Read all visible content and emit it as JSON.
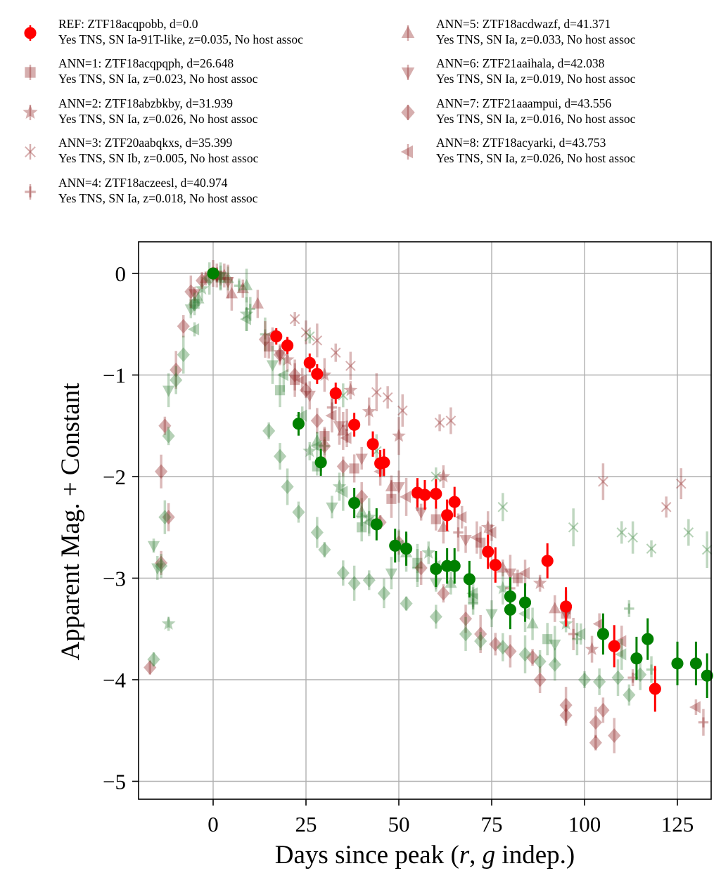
{
  "chart_data": {
    "type": "scatter",
    "xlabel": "Days since peak (r, g indep.)",
    "ylabel": "Apparent Mag. + Constant",
    "xlim": [
      -20,
      134
    ],
    "ylim": [
      -5.2,
      0.3
    ],
    "x_ticks": [
      0,
      25,
      50,
      75,
      100,
      125
    ],
    "y_ticks": [
      0,
      -1,
      -2,
      -3,
      -4,
      -5
    ],
    "grid": true,
    "legend_position": "above plot, two columns",
    "colors": {
      "r_band": "#8b1a1a",
      "g_band": "#2e7d32",
      "ref_r": "#ff0000",
      "ref_g": "#008000"
    },
    "series": [
      {
        "name": "REF: ZTF18acqpobb, d=0.0",
        "note": "Yes TNS, SN Ia-91T-like, z=0.035, No host assoc",
        "marker": "circle",
        "alpha": 1.0,
        "r_points": [
          [
            0,
            0
          ],
          [
            17,
            -0.62
          ],
          [
            20,
            -0.71
          ],
          [
            26,
            -0.88
          ],
          [
            28,
            -0.99
          ],
          [
            33,
            -1.18
          ],
          [
            38,
            -1.49
          ],
          [
            43,
            -1.68
          ],
          [
            45,
            -1.87
          ],
          [
            46,
            -1.86
          ],
          [
            55,
            -2.16
          ],
          [
            57,
            -2.18
          ],
          [
            60,
            -2.17
          ],
          [
            63,
            -2.38
          ],
          [
            65,
            -2.25
          ],
          [
            74,
            -2.74
          ],
          [
            76,
            -2.87
          ],
          [
            90,
            -2.83
          ],
          [
            95,
            -3.28
          ],
          [
            108,
            -3.67
          ],
          [
            119,
            -4.09
          ]
        ],
        "g_points": [
          [
            0,
            0
          ],
          [
            23,
            -1.48
          ],
          [
            29,
            -1.86
          ],
          [
            38,
            -2.26
          ],
          [
            44,
            -2.47
          ],
          [
            49,
            -2.68
          ],
          [
            52,
            -2.71
          ],
          [
            60,
            -2.91
          ],
          [
            63,
            -2.88
          ],
          [
            65,
            -2.88
          ],
          [
            69,
            -3.01
          ],
          [
            80,
            -3.18
          ],
          [
            80,
            -3.31
          ],
          [
            84,
            -3.24
          ],
          [
            105,
            -3.55
          ],
          [
            114,
            -3.79
          ],
          [
            117,
            -3.6
          ],
          [
            125,
            -3.84
          ],
          [
            130,
            -3.84
          ],
          [
            133,
            -3.96
          ]
        ]
      },
      {
        "name": "ANN=1: ZTF18acqpqph, d=26.648",
        "note": "Yes TNS, SN Ia, z=0.023, No host assoc",
        "marker": "square",
        "alpha": 0.35,
        "r_points": [
          [
            1,
            -0.02
          ],
          [
            15,
            -0.72
          ],
          [
            22,
            -1.05
          ],
          [
            30,
            -1.6
          ],
          [
            38,
            -1.92
          ],
          [
            48,
            -2.22
          ],
          [
            60,
            -2.42
          ],
          [
            72,
            -2.65
          ],
          [
            82,
            -3.0
          ],
          [
            95,
            -3.35
          ]
        ],
        "g_points": [
          [
            -5,
            -0.3
          ],
          [
            2,
            -0.04
          ],
          [
            18,
            -1.15
          ],
          [
            28,
            -1.9
          ],
          [
            40,
            -2.5
          ],
          [
            55,
            -2.85
          ],
          [
            70,
            -3.2
          ],
          [
            90,
            -3.6
          ]
        ]
      },
      {
        "name": "ANN=2: ZTF18abzbkby, d=31.939",
        "note": "Yes TNS, SN Ia, z=0.026, No host assoc",
        "marker": "star",
        "alpha": 0.35,
        "r_points": [
          [
            1,
            -0.01
          ],
          [
            20,
            -0.85
          ],
          [
            30,
            -1.0
          ],
          [
            37,
            -1.15
          ],
          [
            42,
            -1.36
          ],
          [
            50,
            -1.6
          ],
          [
            62,
            -2.0
          ],
          [
            74,
            -2.5
          ],
          [
            88,
            -3.05
          ],
          [
            102,
            -3.7
          ]
        ],
        "g_points": [
          [
            -12,
            -3.45
          ],
          [
            -3,
            -0.15
          ],
          [
            9,
            -0.4
          ],
          [
            26,
            -1.75
          ],
          [
            34,
            -2.1
          ],
          [
            42,
            -2.4
          ],
          [
            58,
            -2.75
          ],
          [
            78,
            -3.1
          ],
          [
            95,
            -3.45
          ]
        ]
      },
      {
        "name": "ANN=3: ZTF20aabqkxs, d=35.399",
        "note": "Yes TNS, SN Ib, z=0.005, No host assoc",
        "marker": "x",
        "alpha": 0.35,
        "r_points": [
          [
            22,
            -0.45
          ],
          [
            25,
            -0.58
          ],
          [
            28,
            -0.66
          ],
          [
            33,
            -0.78
          ],
          [
            37,
            -0.91
          ],
          [
            44,
            -1.17
          ],
          [
            47,
            -1.22
          ],
          [
            51,
            -1.35
          ],
          [
            61,
            -1.47
          ],
          [
            64,
            -1.45
          ],
          [
            105,
            -2.05
          ],
          [
            122,
            -2.3
          ],
          [
            126,
            -2.07
          ]
        ],
        "g_points": [
          [
            26,
            -0.62
          ],
          [
            35,
            -1.2
          ],
          [
            44,
            -1.75
          ],
          [
            60,
            -2.0
          ],
          [
            78,
            -2.3
          ],
          [
            97,
            -2.5
          ],
          [
            110,
            -2.55
          ],
          [
            113,
            -2.6
          ],
          [
            118,
            -2.71
          ],
          [
            128,
            -2.55
          ],
          [
            133,
            -2.72
          ]
        ]
      },
      {
        "name": "ANN=4: ZTF18aczeesl, d=40.974",
        "note": "Yes TNS, SN Ia, z=0.018, No host assoc",
        "marker": "plus",
        "alpha": 0.35,
        "r_points": [
          [
            2,
            -0.05
          ],
          [
            32,
            -1.32
          ],
          [
            36,
            -1.5
          ],
          [
            45,
            -1.88
          ],
          [
            55,
            -2.2
          ],
          [
            66,
            -2.55
          ],
          [
            80,
            -3.1
          ],
          [
            97,
            -3.55
          ],
          [
            113,
            -3.98
          ],
          [
            132,
            -4.42
          ]
        ],
        "g_points": [
          [
            7,
            -0.12
          ],
          [
            10,
            -0.35
          ],
          [
            14,
            -0.6
          ],
          [
            30,
            -1.7
          ],
          [
            40,
            -2.4
          ],
          [
            55,
            -2.9
          ],
          [
            70,
            -3.25
          ],
          [
            98,
            -3.6
          ],
          [
            112,
            -3.3
          ],
          [
            118,
            -3.9
          ]
        ]
      },
      {
        "name": "ANN=5: ZTF18acdwazf, d=41.371",
        "note": "Yes TNS, SN Ia, z=0.033, No host assoc",
        "marker": "triangle-up",
        "alpha": 0.35,
        "r_points": [
          [
            -2,
            -0.05
          ],
          [
            3,
            -0.02
          ],
          [
            5,
            -0.2
          ],
          [
            8,
            -0.15
          ],
          [
            12,
            -0.3
          ],
          [
            35,
            -1.55
          ],
          [
            48,
            -2.1
          ],
          [
            62,
            -2.5
          ],
          [
            78,
            -2.9
          ],
          [
            92,
            -3.3
          ]
        ],
        "g_points": [
          [
            -4,
            -0.25
          ],
          [
            4,
            -0.05
          ],
          [
            9,
            -0.12
          ],
          [
            28,
            -1.65
          ],
          [
            40,
            -2.35
          ],
          [
            52,
            -2.75
          ],
          [
            64,
            -3.05
          ],
          [
            86,
            -3.45
          ]
        ]
      },
      {
        "name": "ANN=6: ZTF21aaihala, d=42.038",
        "note": "Yes TNS, SN Ia, z=0.019, No host assoc",
        "marker": "triangle-down",
        "alpha": 0.35,
        "r_points": [
          [
            -5,
            -0.2
          ],
          [
            1,
            -0.02
          ],
          [
            4,
            -0.08
          ],
          [
            18,
            -0.8
          ],
          [
            26,
            -1.2
          ],
          [
            34,
            -1.5
          ],
          [
            40,
            -1.82
          ],
          [
            50,
            -2.1
          ],
          [
            56,
            -2.35
          ],
          [
            68,
            -2.62
          ],
          [
            80,
            -2.95
          ],
          [
            95,
            -3.35
          ]
        ],
        "g_points": [
          [
            -16,
            -2.68
          ],
          [
            -15,
            -2.9
          ],
          [
            -12,
            -1.15
          ],
          [
            -6,
            -0.35
          ],
          [
            2,
            -0.03
          ],
          [
            16,
            -0.9
          ],
          [
            32,
            -2.3
          ],
          [
            48,
            -2.95
          ],
          [
            60,
            -3.05
          ],
          [
            75,
            -3.35
          ],
          [
            92,
            -3.65
          ]
        ]
      },
      {
        "name": "ANN=7: ZTF21aaampui, d=43.556",
        "note": "Yes TNS, SN Ia, z=0.016, No host assoc",
        "marker": "diamond",
        "alpha": 0.35,
        "r_points": [
          [
            -17,
            -3.88
          ],
          [
            -14,
            -2.85
          ],
          [
            -14,
            -1.95
          ],
          [
            -13,
            -1.5
          ],
          [
            -12,
            -2.4
          ],
          [
            -10,
            -0.95
          ],
          [
            -8,
            -0.52
          ],
          [
            -6,
            -0.18
          ],
          [
            -3,
            -0.07
          ],
          [
            0,
            0
          ],
          [
            14,
            -0.65
          ],
          [
            18,
            -0.8
          ],
          [
            22,
            -1.0
          ],
          [
            25,
            -1.15
          ],
          [
            28,
            -1.45
          ],
          [
            30,
            -1.7
          ],
          [
            35,
            -1.9
          ],
          [
            40,
            -2.2
          ],
          [
            45,
            -2.45
          ],
          [
            50,
            -2.65
          ],
          [
            56,
            -2.9
          ],
          [
            62,
            -3.15
          ],
          [
            68,
            -3.4
          ],
          [
            72,
            -3.55
          ],
          [
            76,
            -3.65
          ],
          [
            80,
            -3.72
          ],
          [
            86,
            -3.78
          ],
          [
            88,
            -4.0
          ],
          [
            95,
            -4.25
          ],
          [
            95,
            -4.35
          ],
          [
            103,
            -4.42
          ],
          [
            103,
            -4.62
          ],
          [
            105,
            -4.3
          ],
          [
            108,
            -4.55
          ]
        ],
        "g_points": [
          [
            -16,
            -3.8
          ],
          [
            -14,
            -2.88
          ],
          [
            -13,
            -2.4
          ],
          [
            -12,
            -1.6
          ],
          [
            -10,
            -1.05
          ],
          [
            -8,
            -0.8
          ],
          [
            -5,
            -0.3
          ],
          [
            -1,
            -0.05
          ],
          [
            15,
            -1.55
          ],
          [
            18,
            -1.8
          ],
          [
            20,
            -2.1
          ],
          [
            23,
            -2.35
          ],
          [
            28,
            -2.55
          ],
          [
            30,
            -2.72
          ],
          [
            35,
            -2.95
          ],
          [
            38,
            -3.05
          ],
          [
            42,
            -3.02
          ],
          [
            46,
            -3.15
          ],
          [
            52,
            -3.25
          ],
          [
            60,
            -3.38
          ],
          [
            68,
            -3.55
          ],
          [
            72,
            -3.62
          ],
          [
            78,
            -3.68
          ],
          [
            84,
            -3.75
          ],
          [
            88,
            -3.82
          ],
          [
            92,
            -3.85
          ],
          [
            100,
            -4.0
          ],
          [
            104,
            -4.02
          ],
          [
            109,
            -3.98
          ],
          [
            112,
            -4.15
          ],
          [
            115,
            -3.95
          ]
        ]
      },
      {
        "name": "ANN=8: ZTF18acyarki, d=43.753",
        "note": "Yes TNS, SN Ia, z=0.026, No host assoc",
        "marker": "triangle-left",
        "alpha": 0.35,
        "r_points": [
          [
            16,
            -0.6
          ],
          [
            24,
            -1.05
          ],
          [
            32,
            -1.4
          ],
          [
            36,
            -1.62
          ],
          [
            45,
            -1.95
          ],
          [
            52,
            -2.2
          ],
          [
            67,
            -2.4
          ],
          [
            71,
            -2.6
          ],
          [
            75,
            -2.55
          ],
          [
            84,
            -2.95
          ],
          [
            95,
            -3.3
          ],
          [
            104,
            -3.45
          ],
          [
            110,
            -3.62
          ],
          [
            130,
            -4.27
          ]
        ],
        "g_points": [
          [
            -5,
            -0.55
          ],
          [
            9,
            -0.45
          ],
          [
            19,
            -1.0
          ],
          [
            24,
            -1.4
          ],
          [
            28,
            -1.7
          ],
          [
            35,
            -2.15
          ],
          [
            42,
            -2.45
          ],
          [
            50,
            -2.68
          ],
          [
            60,
            -2.88
          ],
          [
            70,
            -3.15
          ],
          [
            84,
            -3.35
          ],
          [
            99,
            -3.55
          ],
          [
            110,
            -3.75
          ]
        ]
      }
    ]
  }
}
